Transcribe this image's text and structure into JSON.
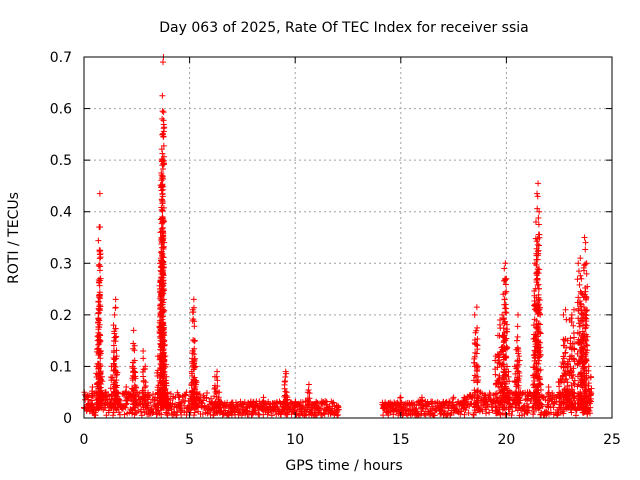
{
  "chart_data": {
    "type": "scatter",
    "title": "Day 063 of 2025, Rate Of TEC Index for receiver ssia",
    "xlabel": "GPS time / hours",
    "ylabel": "ROTI / TECUs",
    "xlim": [
      0,
      25
    ],
    "ylim": [
      0,
      0.7
    ],
    "x_ticks": [
      "0",
      "5",
      "10",
      "15",
      "20",
      "25"
    ],
    "y_ticks": [
      "0",
      "0.1",
      "0.2",
      "0.3",
      "0.4",
      "0.5",
      "0.6",
      "0.7"
    ],
    "grid": true,
    "marker": "+",
    "color": "#ff0000",
    "gap_hours": [
      12.05,
      14.1
    ],
    "series": [
      {
        "values_note": "",
        "x": [
          0.0,
          0.2,
          0.4,
          0.6,
          0.65,
          0.68,
          0.7,
          0.72,
          0.75,
          0.8,
          0.85,
          1.0,
          1.3,
          1.4,
          1.45,
          1.5,
          1.55,
          1.6,
          2.0,
          2.3,
          2.35,
          2.4,
          2.45,
          2.8,
          2.9,
          3.0,
          3.5,
          3.6,
          3.62,
          3.64,
          3.66,
          3.68,
          3.7,
          3.72,
          3.74,
          3.76,
          3.78,
          3.8,
          3.85,
          3.9,
          3.95,
          4.0,
          4.5,
          5.1,
          5.15,
          5.2,
          5.25,
          5.3,
          5.35,
          6.2,
          6.3,
          6.4,
          7.0,
          8.0,
          8.5,
          9.5,
          9.55,
          9.6,
          10.0,
          10.6,
          10.65,
          11.0,
          12.0,
          14.2,
          14.5,
          15.0,
          16.0,
          17.0,
          17.5,
          18.0,
          18.5,
          18.6,
          18.65,
          19.0,
          19.5,
          19.6,
          19.7,
          19.8,
          19.85,
          19.9,
          19.95,
          20.0,
          20.1,
          20.4,
          20.5,
          20.55,
          20.6,
          21.0,
          21.3,
          21.35,
          21.4,
          21.45,
          21.5,
          21.55,
          21.6,
          22.0,
          22.5,
          22.6,
          22.7,
          22.8,
          22.9,
          23.0,
          23.1,
          23.2,
          23.4,
          23.5,
          23.55,
          23.6,
          23.65,
          23.7,
          23.75,
          23.8,
          23.9,
          24.0
        ],
        "y": [
          0.02,
          0.04,
          0.06,
          0.1,
          0.15,
          0.225,
          0.295,
          0.37,
          0.435,
          0.13,
          0.08,
          0.05,
          0.1,
          0.18,
          0.2,
          0.23,
          0.12,
          0.05,
          0.06,
          0.1,
          0.17,
          0.14,
          0.06,
          0.13,
          0.1,
          0.04,
          0.12,
          0.3,
          0.36,
          0.385,
          0.475,
          0.5,
          0.58,
          0.595,
          0.69,
          0.7,
          0.23,
          0.15,
          0.12,
          0.08,
          0.05,
          0.03,
          0.03,
          0.09,
          0.21,
          0.23,
          0.15,
          0.1,
          0.05,
          0.08,
          0.09,
          0.05,
          0.03,
          0.03,
          0.04,
          0.07,
          0.09,
          0.05,
          0.03,
          0.05,
          0.065,
          0.03,
          0.015,
          0.02,
          0.03,
          0.04,
          0.04,
          0.03,
          0.04,
          0.04,
          0.2,
          0.215,
          0.1,
          0.04,
          0.12,
          0.16,
          0.19,
          0.2,
          0.24,
          0.29,
          0.3,
          0.27,
          0.09,
          0.1,
          0.15,
          0.2,
          0.12,
          0.05,
          0.18,
          0.3,
          0.38,
          0.435,
          0.455,
          0.4,
          0.2,
          0.06,
          0.07,
          0.1,
          0.2,
          0.21,
          0.15,
          0.19,
          0.2,
          0.21,
          0.3,
          0.31,
          0.27,
          0.24,
          0.2,
          0.35,
          0.34,
          0.3,
          0.1,
          0.08
        ]
      }
    ]
  }
}
